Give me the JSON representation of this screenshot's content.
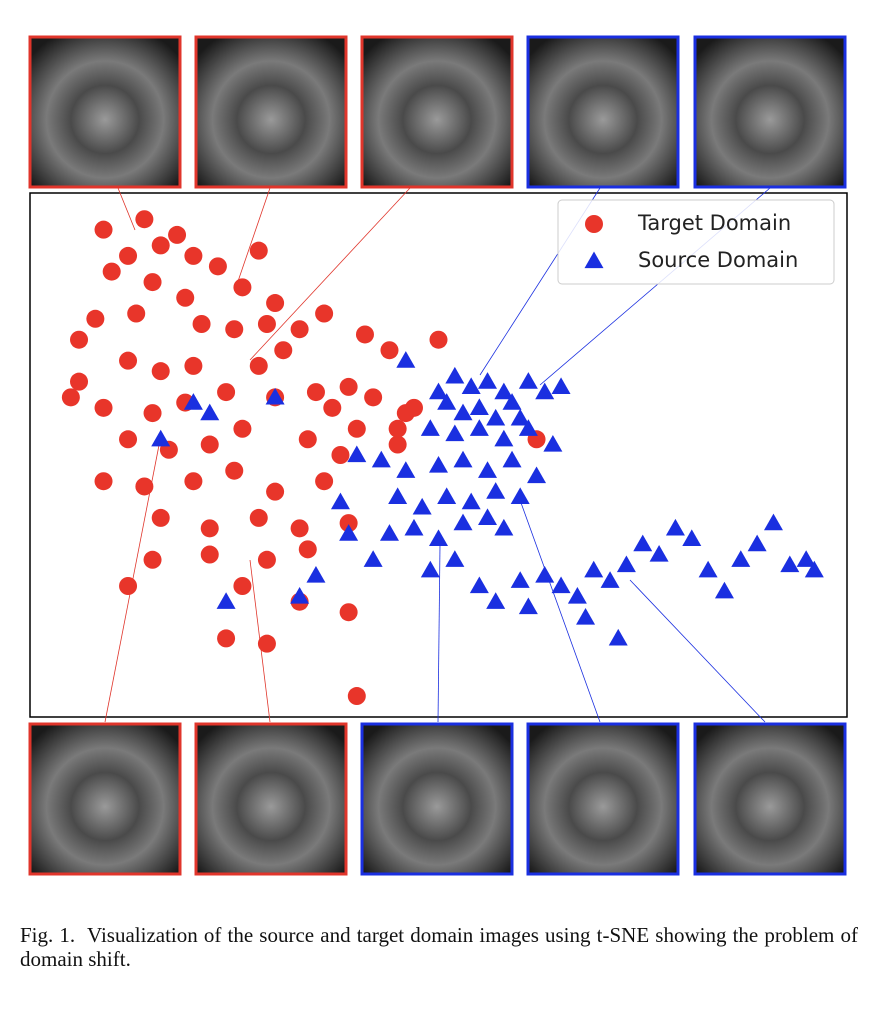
{
  "chart_data": {
    "type": "scatter",
    "xlim": [
      0,
      100
    ],
    "ylim": [
      0,
      100
    ],
    "legend": "upper right",
    "series": [
      {
        "name": "Target Domain",
        "color": "#e8352a",
        "marker": "circle",
        "x": [
          9,
          14,
          16,
          18,
          12,
          20,
          10,
          15,
          19,
          23,
          26,
          28,
          30,
          8,
          6,
          13,
          21,
          25,
          29,
          33,
          36,
          41,
          12,
          16,
          20,
          28,
          31,
          35,
          39,
          44,
          5,
          9,
          15,
          19,
          24,
          30,
          37,
          42,
          46,
          12,
          17,
          22,
          26,
          34,
          40,
          45,
          9,
          14,
          20,
          25,
          30,
          36,
          38,
          16,
          22,
          28,
          33,
          39,
          15,
          22,
          29,
          34,
          12,
          26,
          33,
          39,
          24,
          29,
          40,
          62,
          50,
          45,
          6,
          47
        ],
        "values": [
          93,
          95,
          90,
          92,
          88,
          88,
          85,
          83,
          80,
          86,
          82,
          89,
          79,
          76,
          72,
          77,
          75,
          74,
          75,
          74,
          77,
          73,
          68,
          66,
          67,
          67,
          70,
          62,
          63,
          70,
          61,
          59,
          58,
          60,
          62,
          61,
          59,
          61,
          58,
          53,
          51,
          52,
          55,
          53,
          55,
          52,
          45,
          44,
          45,
          47,
          43,
          45,
          50,
          38,
          36,
          38,
          36,
          37,
          30,
          31,
          30,
          32,
          25,
          25,
          22,
          20,
          15,
          14,
          4,
          53,
          72,
          55,
          64,
          59
        ]
      },
      {
        "name": "Source Domain",
        "color": "#1a2fe0",
        "marker": "triangle",
        "x": [
          46,
          50,
          52,
          54,
          56,
          58,
          61,
          63,
          65,
          51,
          53,
          55,
          57,
          59,
          60,
          49,
          52,
          55,
          58,
          61,
          64,
          43,
          46,
          50,
          53,
          56,
          59,
          62,
          45,
          48,
          51,
          54,
          57,
          60,
          44,
          47,
          50,
          53,
          56,
          58,
          42,
          49,
          52,
          55,
          57,
          60,
          63,
          65,
          67,
          69,
          71,
          73,
          75,
          77,
          79,
          81,
          83,
          85,
          87,
          89,
          91,
          93,
          95,
          96,
          68,
          72,
          61,
          33,
          24,
          35,
          39,
          20,
          16,
          22,
          40,
          38,
          30
        ],
        "values": [
          68,
          62,
          65,
          63,
          64,
          62,
          64,
          62,
          63,
          60,
          58,
          59,
          57,
          60,
          57,
          55,
          54,
          55,
          53,
          55,
          52,
          49,
          47,
          48,
          49,
          47,
          49,
          46,
          42,
          40,
          42,
          41,
          43,
          42,
          35,
          36,
          34,
          37,
          38,
          36,
          30,
          28,
          30,
          25,
          22,
          26,
          27,
          25,
          23,
          28,
          26,
          29,
          33,
          31,
          36,
          34,
          28,
          24,
          30,
          33,
          37,
          29,
          30,
          28,
          19,
          15,
          21,
          23,
          22,
          27,
          35,
          60,
          53,
          58,
          50,
          41,
          61
        ]
      }
    ]
  },
  "caption": "Fig. 1.  Visualization of the source and target domain images using t-SNE showing the problem of domain shift."
}
